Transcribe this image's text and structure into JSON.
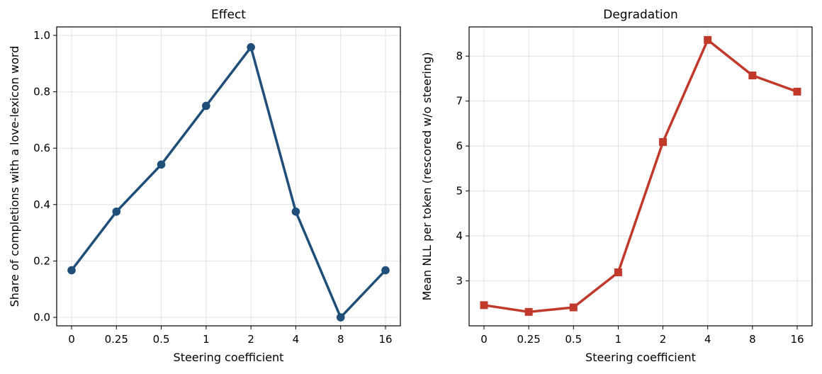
{
  "chart_data": [
    {
      "type": "line",
      "title": "Effect",
      "xlabel": "Steering coefficient",
      "ylabel": "Share of completions with a love-lexicon word",
      "categories": [
        "0",
        "0.25",
        "0.5",
        "1",
        "2",
        "4",
        "8",
        "16"
      ],
      "series": [
        {
          "values": [
            0.167,
            0.375,
            0.542,
            0.75,
            0.958,
            0.375,
            0.0,
            0.167
          ],
          "color": "#1f4e79",
          "marker": "circle"
        }
      ],
      "ylim": [
        -0.03,
        1.03
      ],
      "yticks": [
        0.0,
        0.2,
        0.4,
        0.6,
        0.8,
        1.0
      ],
      "ytick_labels": [
        "0.0",
        "0.2",
        "0.4",
        "0.6",
        "0.8",
        "1.0"
      ],
      "grid": true,
      "legend": "none"
    },
    {
      "type": "line",
      "title": "Degradation",
      "xlabel": "Steering coefficient",
      "ylabel": "Mean NLL per token (rescored w/o steering)",
      "categories": [
        "0",
        "0.25",
        "0.5",
        "1",
        "2",
        "4",
        "8",
        "16"
      ],
      "series": [
        {
          "values": [
            2.46,
            2.31,
            2.41,
            3.19,
            6.09,
            8.36,
            7.57,
            7.21
          ],
          "color": "#c0392b",
          "marker": "square"
        }
      ],
      "ylim": [
        2.0,
        8.65
      ],
      "yticks": [
        3,
        4,
        5,
        6,
        7,
        8
      ],
      "ytick_labels": [
        "3",
        "4",
        "5",
        "6",
        "7",
        "8"
      ],
      "grid": true,
      "legend": "none"
    }
  ]
}
